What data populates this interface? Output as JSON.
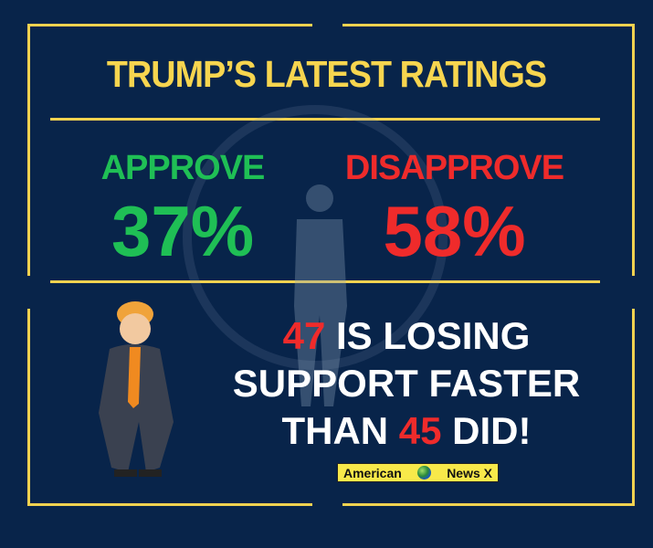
{
  "title": "TRUMP’S LATEST RATINGS",
  "approve": {
    "label": "APPROVE",
    "value": "37%"
  },
  "disapprove": {
    "label": "DISAPPROVE",
    "value": "58%"
  },
  "message": {
    "n1": "47",
    "line1_rest": " IS LOSING",
    "line2": "SUPPORT FASTER",
    "line3_pre": "THAN ",
    "n2": "45",
    "line3_post": " DID!"
  },
  "badge": {
    "left": "American",
    "right": "News X"
  },
  "colors": {
    "background": "#08244a",
    "accent": "#f7d54f",
    "approve": "#1fbf55",
    "disapprove": "#ef2b2b"
  }
}
